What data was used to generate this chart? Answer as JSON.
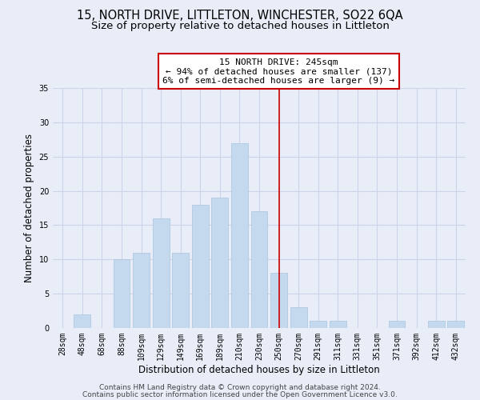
{
  "title": "15, NORTH DRIVE, LITTLETON, WINCHESTER, SO22 6QA",
  "subtitle": "Size of property relative to detached houses in Littleton",
  "xlabel": "Distribution of detached houses by size in Littleton",
  "ylabel": "Number of detached properties",
  "categories": [
    "28sqm",
    "48sqm",
    "68sqm",
    "88sqm",
    "109sqm",
    "129sqm",
    "149sqm",
    "169sqm",
    "189sqm",
    "210sqm",
    "230sqm",
    "250sqm",
    "270sqm",
    "291sqm",
    "311sqm",
    "331sqm",
    "351sqm",
    "371sqm",
    "392sqm",
    "412sqm",
    "432sqm"
  ],
  "values": [
    0,
    2,
    0,
    10,
    11,
    16,
    11,
    18,
    19,
    27,
    17,
    8,
    3,
    1,
    1,
    0,
    0,
    1,
    0,
    1,
    1
  ],
  "bar_color": "#c5d9ee",
  "bar_edge_color": "#a8c4e0",
  "grid_color": "#ccd5e8",
  "background_color": "#e8edf8",
  "vline_x": 11,
  "vline_color": "#cc0000",
  "annotation_line1": "15 NORTH DRIVE: 245sqm",
  "annotation_line2": "← 94% of detached houses are smaller (137)",
  "annotation_line3": "6% of semi-detached houses are larger (9) →",
  "annotation_box_color": "#ffffff",
  "annotation_box_edge": "#cc0000",
  "ylim": [
    0,
    35
  ],
  "yticks": [
    0,
    5,
    10,
    15,
    20,
    25,
    30,
    35
  ],
  "footer1": "Contains HM Land Registry data © Crown copyright and database right 2024.",
  "footer2": "Contains public sector information licensed under the Open Government Licence v3.0.",
  "title_fontsize": 10.5,
  "subtitle_fontsize": 9.5,
  "xlabel_fontsize": 8.5,
  "ylabel_fontsize": 8.5,
  "tick_fontsize": 7,
  "footer_fontsize": 6.5,
  "annot_fontsize": 8
}
